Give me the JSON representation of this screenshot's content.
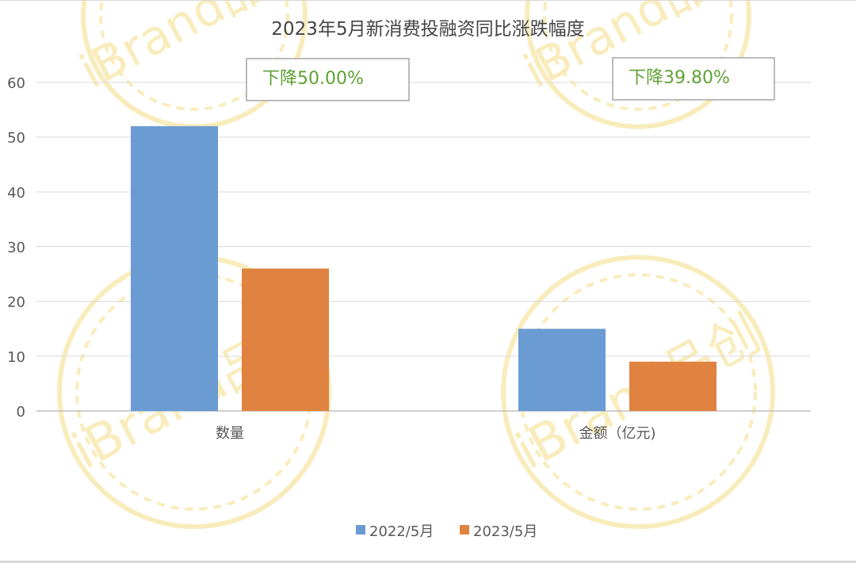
{
  "chart_data": {
    "type": "bar",
    "title": "2023年5月新消费投融资同比涨跌幅度",
    "categories": [
      "数量",
      "金额（亿元)"
    ],
    "series": [
      {
        "name": "2022/5月",
        "values": [
          52,
          15
        ]
      },
      {
        "name": "2023/5月",
        "values": [
          26,
          9
        ]
      }
    ],
    "ylim": [
      0,
      60
    ],
    "yticks": [
      "0",
      "10",
      "20",
      "30",
      "40",
      "50",
      "60"
    ],
    "grid": true,
    "legend_position": "bottom",
    "annotations": [
      "下降50.00%",
      "下降39.80%"
    ],
    "colors": {
      "series_2022": "#6a9bd2",
      "series_2023": "#e08340",
      "annotation_text": "#5fa234",
      "watermark": "#f7e6a6"
    }
  },
  "watermark": {
    "text": "iBrand品创"
  }
}
